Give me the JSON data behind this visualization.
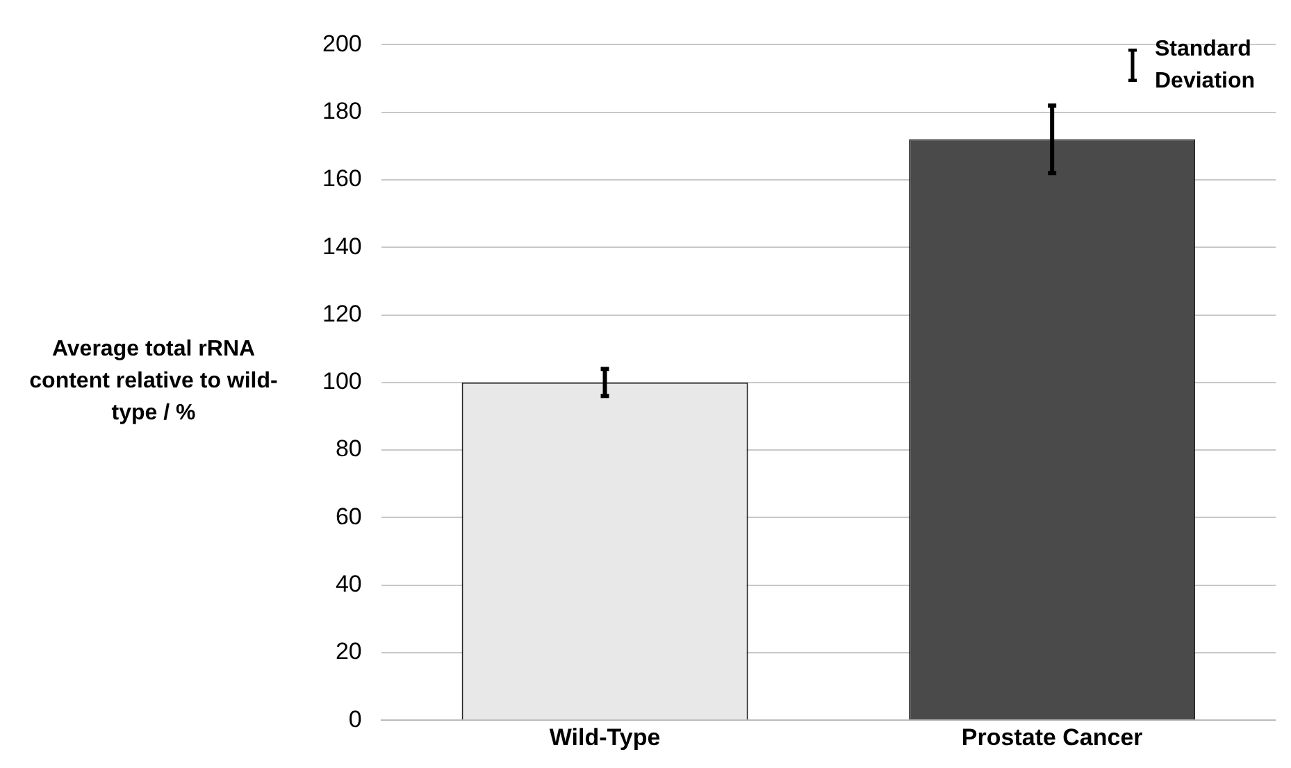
{
  "chart_data": {
    "type": "bar",
    "ylabel": "Average total rRNA content relative to wild-type / %",
    "categories": [
      "Wild-Type",
      "Prostate Cancer"
    ],
    "values": [
      100,
      172
    ],
    "colors": [
      "#e8e8e8",
      "#4a4a4a"
    ],
    "errors": [
      4,
      10
    ],
    "ylim": [
      0,
      200
    ],
    "yticks": [
      0,
      20,
      40,
      60,
      80,
      100,
      120,
      140,
      160,
      180,
      200
    ],
    "grid": "y",
    "legend": false,
    "annotations": [
      "Standard Deviation"
    ]
  }
}
